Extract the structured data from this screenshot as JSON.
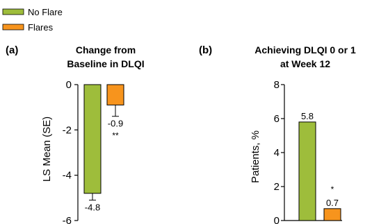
{
  "legend": [
    {
      "label": "No Flare",
      "color": "#9ebd3b"
    },
    {
      "label": "Flares",
      "color": "#f7941d"
    }
  ],
  "chart_data": [
    {
      "type": "bar",
      "panel": "(a)",
      "title": [
        "Change from",
        "Baseline in DLQI"
      ],
      "xlabel": "",
      "ylabel": "LS Mean (SE)",
      "ylim": [
        -6,
        0
      ],
      "yticks": [
        0,
        -2,
        -4,
        -6
      ],
      "categories": [
        "No Flare",
        "Flares"
      ],
      "series": [
        {
          "name": "No Flare",
          "color": "#9ebd3b",
          "values": [
            -4.8,
            null
          ],
          "labels": [
            "-4.8",
            ""
          ],
          "error": [
            0.3,
            null
          ]
        },
        {
          "name": "Flares",
          "color": "#f7941d",
          "values": [
            null,
            -0.9
          ],
          "labels": [
            "",
            "-0.9"
          ],
          "error": [
            null,
            0.5
          ]
        }
      ],
      "annotations": [
        {
          "text": "**",
          "category": "Flares"
        }
      ]
    },
    {
      "type": "bar",
      "panel": "(b)",
      "title": [
        "Achieving DLQI 0 or 1",
        "at Week 12"
      ],
      "xlabel": "",
      "ylabel": "Patients, %",
      "ylim": [
        0,
        8
      ],
      "yticks": [
        0,
        2,
        4,
        6,
        8
      ],
      "categories": [
        "No Flare",
        "Flares"
      ],
      "series": [
        {
          "name": "No Flare",
          "color": "#9ebd3b",
          "values": [
            5.8,
            null
          ],
          "labels": [
            "5.8",
            ""
          ]
        },
        {
          "name": "Flares",
          "color": "#f7941d",
          "values": [
            null,
            0.7
          ],
          "labels": [
            "",
            "0.7"
          ]
        }
      ],
      "annotations": [
        {
          "text": "*",
          "category": "Flares"
        }
      ]
    }
  ]
}
